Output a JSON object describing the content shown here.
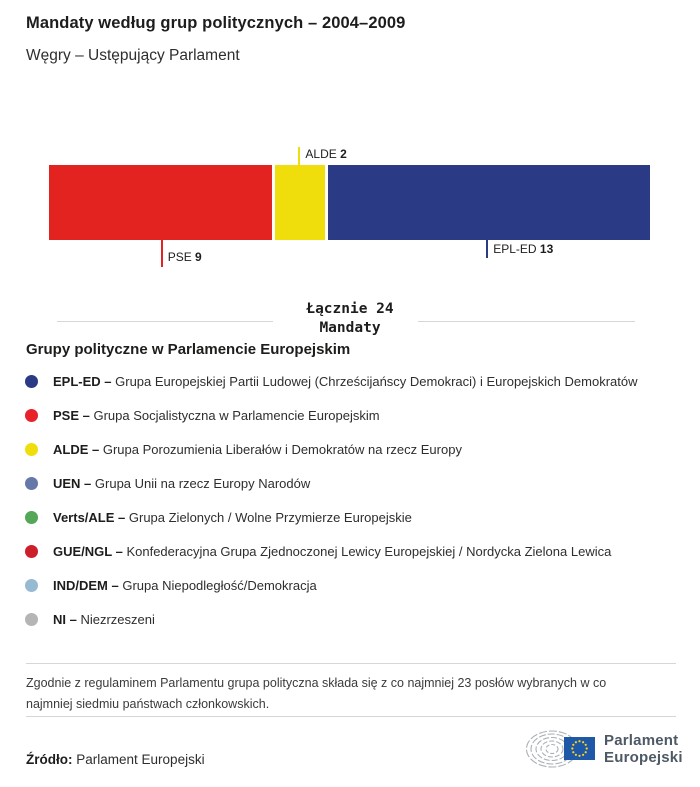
{
  "header": {
    "title": "Mandaty według grup politycznych – 2004–2009",
    "subtitle": "Węgry – Ustępujący Parlament"
  },
  "chart_data": {
    "type": "bar",
    "orientation": "horizontal-stacked",
    "title": "Mandaty według grup politycznych – 2004–2009",
    "subtitle": "Węgry – Ustępujący Parlament",
    "total_seats": 24,
    "total": {
      "line1": "Łącznie 24",
      "line2": "Mandaty"
    },
    "segments": [
      {
        "group": "PSE",
        "seats": 9,
        "color": "#e2231f",
        "label_position": "below-far"
      },
      {
        "group": "ALDE",
        "seats": 2,
        "color": "#f0de0c",
        "label_position": "above"
      },
      {
        "group": "EPL-ED",
        "seats": 13,
        "color": "#2b3a84",
        "label_position": "below"
      }
    ]
  },
  "legend": {
    "heading": "Grupy polityczne w Parlamencie Europejskim",
    "separator": "–",
    "items": [
      {
        "label": "EPL-ED",
        "description": "Grupa Europejskiej Partii Ludowej (Chrześcijańscy Demokraci) i Europejskich Demokratów",
        "color": "#2b3a84"
      },
      {
        "label": "PSE",
        "description": "Grupa Socjalistyczna w Parlamencie Europejskim",
        "color": "#e8222b"
      },
      {
        "label": "ALDE",
        "description": "Grupa Porozumienia Liberałów i Demokratów na rzecz Europy",
        "color": "#f0de0c"
      },
      {
        "label": "UEN",
        "description": "Grupa Unii na rzecz Europy Narodów",
        "color": "#6579a9"
      },
      {
        "label": "Verts/ALE",
        "description": "Grupa Zielonych / Wolne Przymierze Europejskie",
        "color": "#53a757"
      },
      {
        "label": "GUE/NGL",
        "description": "Konfederacyjna Grupa Zjednoczonej Lewicy Europejskiej / Nordycka Zielona Lewica",
        "color": "#cd1f2a"
      },
      {
        "label": "IND/DEM",
        "description": "Grupa Niepodległość/Demokracja",
        "color": "#95bad2"
      },
      {
        "label": "NI",
        "description": "Niezrzeszeni",
        "color": "#b5b5b5"
      }
    ]
  },
  "footnote": "Zgodnie z regulaminem Parlamentu grupa polityczna składa się z co najmniej 23 posłów wybranych w co najmniej siedmiu państwach członkowskich.",
  "source": {
    "label": "Źródło:",
    "value": "Parlament Europejski"
  },
  "logo": {
    "line1": "Parlament",
    "line2": "Europejski",
    "flag_blue": "#2058a8",
    "star_yellow": "#ffd617",
    "arc_gray": "#a9b0b6"
  }
}
